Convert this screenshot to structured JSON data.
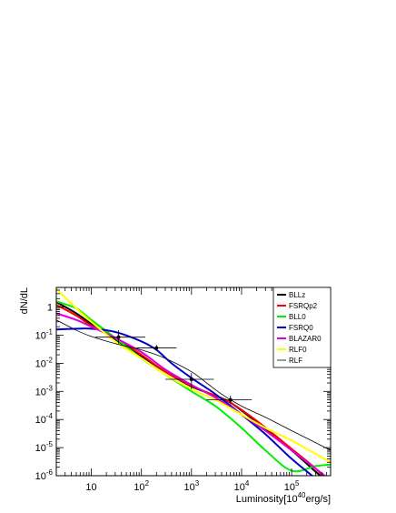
{
  "chart_data": {
    "type": "line",
    "title": "",
    "xlabel": "Luminosity[10^40 erg/s]",
    "ylabel": "dN/dL",
    "xscale": "log",
    "yscale": "log",
    "xlim": [
      2,
      600000
    ],
    "ylim": [
      1e-06,
      5
    ],
    "grid": false,
    "legend_position": "top-right",
    "x_tick_labels": [
      {
        "value": 10,
        "base": "10",
        "exp": ""
      },
      {
        "value": 100,
        "base": "10",
        "exp": "2"
      },
      {
        "value": 1000,
        "base": "10",
        "exp": "3"
      },
      {
        "value": 10000,
        "base": "10",
        "exp": "4"
      },
      {
        "value": 100000,
        "base": "10",
        "exp": "5"
      }
    ],
    "y_tick_labels": [
      {
        "value": 1,
        "base": "1",
        "exp": ""
      },
      {
        "value": 0.1,
        "base": "10",
        "exp": "-1"
      },
      {
        "value": 0.01,
        "base": "10",
        "exp": "-2"
      },
      {
        "value": 0.001,
        "base": "10",
        "exp": "-3"
      },
      {
        "value": 0.0001,
        "base": "10",
        "exp": "-4"
      },
      {
        "value": 1e-05,
        "base": "10",
        "exp": "-5"
      },
      {
        "value": 1e-06,
        "base": "10",
        "exp": "-6"
      }
    ],
    "series": [
      {
        "name": "BLLz",
        "color": "#000000",
        "width": 2,
        "x": [
          2,
          5,
          10,
          30,
          100,
          300,
          1000,
          3000,
          6000,
          20000,
          100000,
          300000,
          600000
        ],
        "y": [
          1.5,
          0.6,
          0.25,
          0.07,
          0.018,
          0.005,
          0.0015,
          0.0007,
          0.0004,
          8e-05,
          8e-06,
          1.4e-06,
          5e-07
        ]
      },
      {
        "name": "FSRQp2",
        "color": "#ff0000",
        "width": 2,
        "x": [
          2,
          5,
          10,
          30,
          100,
          300,
          1000,
          3000,
          6000,
          20000,
          100000,
          300000,
          600000
        ],
        "y": [
          1.2,
          0.5,
          0.22,
          0.08,
          0.02,
          0.005,
          0.0016,
          0.0007,
          0.0004,
          9e-05,
          9e-06,
          1.8e-06,
          5e-07
        ]
      },
      {
        "name": "BLL0",
        "color": "#00ee00",
        "width": 2,
        "x": [
          2,
          5,
          10,
          30,
          100,
          300,
          1000,
          3000,
          10000,
          30000,
          100000,
          300000,
          600000
        ],
        "y": [
          1.6,
          0.9,
          0.35,
          0.08,
          0.015,
          0.004,
          0.001,
          0.0003,
          5e-05,
          8e-06,
          1.5e-06,
          2.2e-06,
          2.5e-06
        ]
      },
      {
        "name": "FSRQ0",
        "color": "#0000cc",
        "width": 2,
        "x": [
          2,
          5,
          10,
          30,
          100,
          200,
          400,
          1000,
          3000,
          10000,
          30000,
          100000,
          300000
        ],
        "y": [
          0.16,
          0.17,
          0.17,
          0.13,
          0.06,
          0.03,
          0.01,
          0.003,
          0.0008,
          0.00015,
          3e-05,
          4e-06,
          8e-07
        ]
      },
      {
        "name": "BLAZAR0",
        "color": "#dd00dd",
        "width": 2,
        "x": [
          2,
          5,
          10,
          30,
          100,
          300,
          1000,
          3000,
          10000,
          30000,
          100000,
          300000,
          600000
        ],
        "y": [
          0.6,
          0.35,
          0.2,
          0.08,
          0.025,
          0.006,
          0.0017,
          0.0006,
          0.00015,
          4e-05,
          8e-06,
          1.8e-06,
          7e-07
        ]
      },
      {
        "name": "RLF0",
        "color": "#ffff00",
        "width": 2,
        "x": [
          2,
          5,
          10,
          30,
          100,
          300,
          1000,
          3000,
          10000,
          30000,
          100000,
          300000,
          600000
        ],
        "y": [
          4.5,
          0.9,
          0.3,
          0.06,
          0.015,
          0.004,
          0.0012,
          0.0005,
          0.00015,
          5e-05,
          1.8e-05,
          6e-06,
          3e-06
        ]
      },
      {
        "name": "RLF",
        "color": "#000000",
        "width": 0.8,
        "x": [
          2,
          5,
          10,
          30,
          100,
          300,
          1000,
          2000,
          4000,
          10000,
          30000,
          100000,
          300000,
          600000
        ],
        "y": [
          0.35,
          0.15,
          0.09,
          0.05,
          0.03,
          0.015,
          0.005,
          0.002,
          0.0008,
          0.0003,
          0.00012,
          4e-05,
          1.5e-05,
          8e-06
        ]
      }
    ],
    "points": [
      {
        "x": 35,
        "y": 0.085,
        "xerr": [
          12,
          120
        ],
        "yerr": [
          0.05,
          0.15
        ]
      },
      {
        "x": 200,
        "y": 0.035,
        "xerr": [
          80,
          500
        ],
        "yerr": [
          0.028,
          0.045
        ]
      },
      {
        "x": 1000,
        "y": 0.0027,
        "xerr": [
          300,
          2800
        ],
        "yerr": [
          0.0012,
          0.0045
        ]
      },
      {
        "x": 6000,
        "y": 0.0005,
        "xerr": [
          2000,
          16000
        ],
        "yerr": [
          0.00035,
          0.0007
        ]
      }
    ]
  }
}
